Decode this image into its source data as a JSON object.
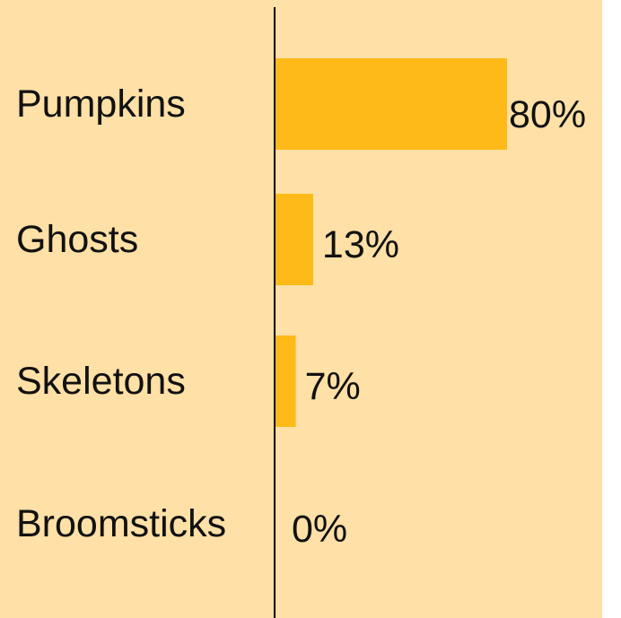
{
  "colors": {
    "background": "#FFE0A6",
    "bar": "#FDBA18",
    "axis": "#000000",
    "text": "#111111"
  },
  "chart_data": {
    "type": "bar",
    "orientation": "horizontal",
    "categories": [
      "Pumpkins",
      "Ghosts",
      "Skeletons",
      "Broomsticks"
    ],
    "values": [
      80,
      13,
      7,
      0
    ],
    "data_labels": [
      "80%",
      "13%",
      "7%",
      "0%"
    ],
    "value_unit": "%",
    "xlim": [
      0,
      100
    ],
    "grid": false,
    "legend": "none"
  }
}
